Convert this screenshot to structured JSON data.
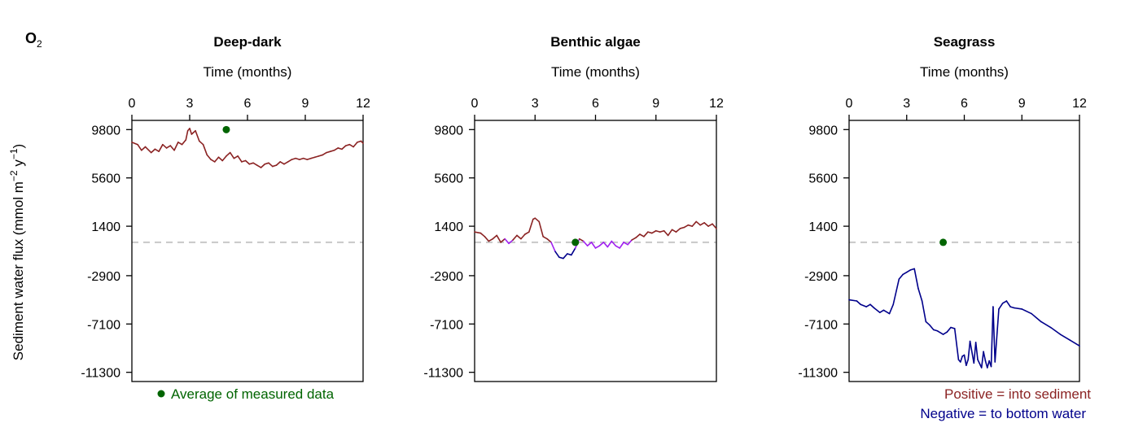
{
  "figure": {
    "species": "O",
    "species_subscript": "2",
    "ylabel": "Sediment water flux (mmol m",
    "ylabel_exp1": "−2",
    "ylabel_mid": " y",
    "ylabel_exp2": "−1",
    "ylabel_close": ")",
    "measured_legend": "Average of measured data",
    "positive_note": "Positive = into sediment",
    "negative_note": "Negative = to bottom water",
    "colors": {
      "positive": "#8b2323",
      "negative": "#00008b",
      "transition": "#a020f0",
      "measured": "#006400",
      "zero_line": "#c8c8c8",
      "axis": "#000000"
    }
  },
  "chart_data": [
    {
      "type": "line",
      "title": "Deep-dark",
      "xlabel": "Time (months)",
      "ylabel": "Sediment water flux (mmol m−2 y−1)",
      "xlim": [
        0,
        12
      ],
      "ylim": [
        -12100,
        10600
      ],
      "xticks": [
        0,
        3,
        6,
        9,
        12
      ],
      "yticks": [
        9800,
        5600,
        1400,
        -2900,
        -7100,
        -11300
      ],
      "zero_line": 0,
      "measured_point": {
        "x": 4.9,
        "y": 9800
      },
      "series": [
        {
          "x": [
            0.0,
            0.3,
            0.5,
            0.7,
            1.0,
            1.2,
            1.4,
            1.6,
            1.8,
            2.0,
            2.2,
            2.4,
            2.6,
            2.8,
            2.9,
            3.0,
            3.1,
            3.3,
            3.5,
            3.7,
            3.9,
            4.1,
            4.3,
            4.5,
            4.7,
            4.9,
            5.1,
            5.3,
            5.5,
            5.7,
            5.9,
            6.1,
            6.3,
            6.5,
            6.7,
            6.9,
            7.1,
            7.3,
            7.5,
            7.7,
            7.9,
            8.1,
            8.3,
            8.5,
            8.7,
            8.9,
            9.1,
            9.3,
            9.5,
            9.7,
            9.9,
            10.1,
            10.3,
            10.5,
            10.7,
            10.9,
            11.1,
            11.3,
            11.5,
            11.7,
            11.9,
            12.0
          ],
          "y": [
            8700,
            8500,
            8000,
            8300,
            7800,
            8100,
            7900,
            8500,
            8200,
            8400,
            8000,
            8700,
            8500,
            8900,
            9700,
            9900,
            9400,
            9700,
            8800,
            8500,
            7600,
            7200,
            7000,
            7400,
            7100,
            7500,
            7800,
            7300,
            7500,
            7000,
            7100,
            6800,
            6900,
            6700,
            6500,
            6800,
            6900,
            6600,
            6700,
            7000,
            6800,
            7000,
            7200,
            7300,
            7200,
            7300,
            7200,
            7300,
            7400,
            7500,
            7600,
            7800,
            7900,
            8000,
            8200,
            8100,
            8400,
            8500,
            8300,
            8700,
            8800,
            8600
          ]
        }
      ]
    },
    {
      "type": "line",
      "title": "Benthic algae",
      "xlabel": "Time (months)",
      "ylabel": "Sediment water flux (mmol m−2 y−1)",
      "xlim": [
        0,
        12
      ],
      "ylim": [
        -12100,
        10600
      ],
      "xticks": [
        0,
        3,
        6,
        9,
        12
      ],
      "yticks": [
        9800,
        5600,
        1400,
        -2900,
        -7100,
        -11300
      ],
      "zero_line": 0,
      "measured_point": {
        "x": 5.0,
        "y": 0
      },
      "series": [
        {
          "x": [
            0.0,
            0.3,
            0.5,
            0.7,
            0.9,
            1.1,
            1.3,
            1.5,
            1.7,
            1.9,
            2.1,
            2.3,
            2.5,
            2.7,
            2.9,
            3.0,
            3.2,
            3.4,
            3.6,
            3.8,
            4.0,
            4.2,
            4.4,
            4.6,
            4.8,
            5.0,
            5.2,
            5.4,
            5.6,
            5.8,
            6.0,
            6.2,
            6.4,
            6.6,
            6.8,
            7.0,
            7.2,
            7.4,
            7.6,
            7.8,
            8.0,
            8.2,
            8.4,
            8.6,
            8.8,
            9.0,
            9.2,
            9.4,
            9.6,
            9.8,
            10.0,
            10.2,
            10.4,
            10.6,
            10.8,
            11.0,
            11.2,
            11.4,
            11.6,
            11.8,
            12.0
          ],
          "y": [
            900,
            800,
            500,
            100,
            300,
            600,
            0,
            300,
            -100,
            200,
            600,
            300,
            700,
            900,
            2000,
            2100,
            1800,
            500,
            300,
            0,
            -800,
            -1300,
            -1400,
            -1000,
            -1100,
            -500,
            300,
            100,
            -300,
            0,
            -500,
            -300,
            0,
            -400,
            100,
            -300,
            -500,
            0,
            -200,
            200,
            400,
            700,
            500,
            900,
            800,
            1000,
            900,
            1000,
            600,
            1100,
            900,
            1200,
            1300,
            1500,
            1400,
            1800,
            1500,
            1700,
            1400,
            1600,
            1200
          ]
        }
      ]
    },
    {
      "type": "line",
      "title": "Seagrass",
      "xlabel": "Time (months)",
      "ylabel": "Sediment water flux (mmol m−2 y−1)",
      "xlim": [
        0,
        12
      ],
      "ylim": [
        -12100,
        10600
      ],
      "xticks": [
        0,
        3,
        6,
        9,
        12
      ],
      "yticks": [
        9800,
        5600,
        1400,
        -2900,
        -7100,
        -11300
      ],
      "zero_line": 0,
      "measured_point": {
        "x": 4.9,
        "y": 0
      },
      "series": [
        {
          "x": [
            0.0,
            0.4,
            0.6,
            0.9,
            1.1,
            1.3,
            1.6,
            1.8,
            2.1,
            2.3,
            2.6,
            2.8,
            3.0,
            3.2,
            3.4,
            3.6,
            3.8,
            4.0,
            4.2,
            4.4,
            4.6,
            4.9,
            5.1,
            5.3,
            5.5,
            5.7,
            5.8,
            5.9,
            6.0,
            6.1,
            6.2,
            6.3,
            6.5,
            6.6,
            6.7,
            6.9,
            7.0,
            7.1,
            7.2,
            7.3,
            7.4,
            7.5,
            7.6,
            7.8,
            8.0,
            8.2,
            8.4,
            8.6,
            9.0,
            9.5,
            10.0,
            10.5,
            11.0,
            11.5,
            12.0
          ],
          "y": [
            -5000,
            -5100,
            -5400,
            -5600,
            -5400,
            -5700,
            -6100,
            -5900,
            -6200,
            -5400,
            -3200,
            -2800,
            -2600,
            -2400,
            -2300,
            -4000,
            -5100,
            -6900,
            -7200,
            -7600,
            -7700,
            -8000,
            -7800,
            -7400,
            -7500,
            -10200,
            -10400,
            -9900,
            -9800,
            -10700,
            -10200,
            -8600,
            -10500,
            -8700,
            -10200,
            -10900,
            -9500,
            -10300,
            -10900,
            -10300,
            -10800,
            -5600,
            -10400,
            -5800,
            -5300,
            -5100,
            -5600,
            -5700,
            -5800,
            -6200,
            -6900,
            -7400,
            -8000,
            -8500,
            -9000
          ]
        }
      ]
    }
  ]
}
